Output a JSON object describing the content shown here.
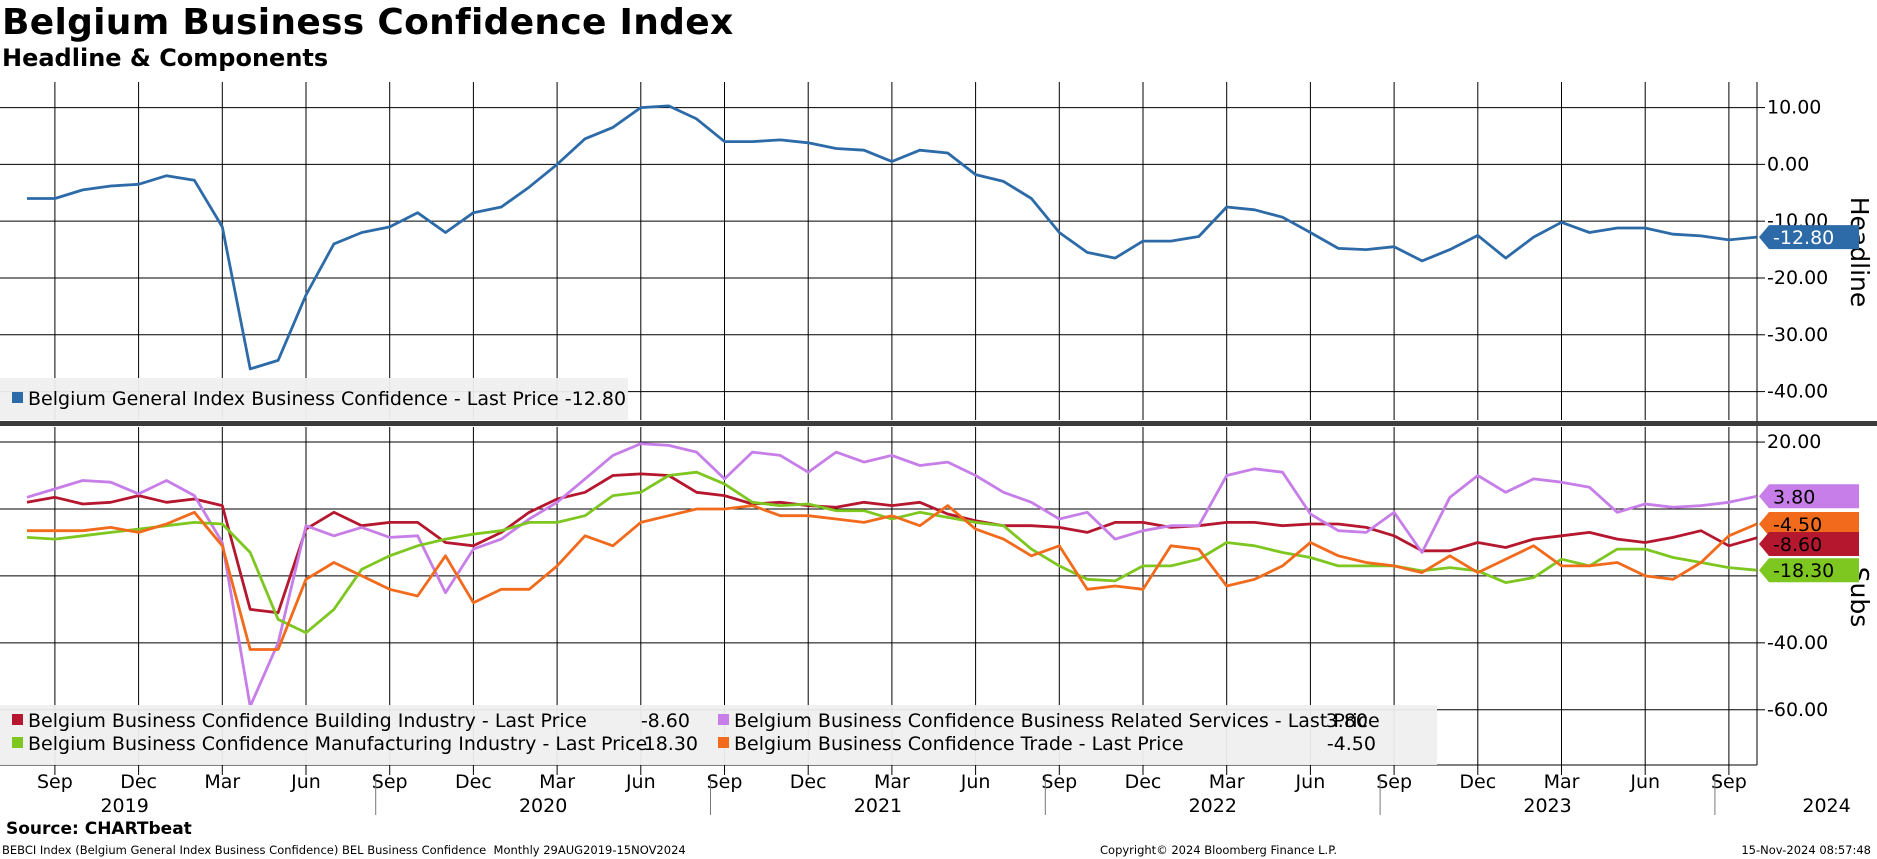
{
  "header": {
    "title": "Belgium Business Confidence Index",
    "subtitle": "Headline & Components"
  },
  "footer": {
    "source": "Source: CHARTbeat",
    "left": "BEBCI Index (Belgium General Index Business Confidence) BEL Business Confidence  Monthly 29AUG2019-15NOV2024",
    "middle": "Copyright© 2024 Bloomberg Finance L.P.",
    "right": "15-Nov-2024 08:57:48"
  },
  "chart_data": [
    {
      "type": "line",
      "panel": "top",
      "ylabel": "Headline",
      "ylim": [
        -45,
        14.5
      ],
      "yticks": [
        10,
        0,
        -10,
        -20,
        -30,
        -40
      ],
      "ytick_labels": [
        "10.00",
        "0.00",
        "-10.00",
        "-20.00",
        "-30.00",
        "-40.00"
      ],
      "grid": true,
      "legend_position": "bottom-left",
      "x_start": "2019-08",
      "series": [
        {
          "name": "Belgium General Index Business Confidence",
          "legend_text": "Belgium General Index Business Confidence - Last Price -12.80",
          "color": "#2c6aa8",
          "last_value_label": "-12.80",
          "values": [
            -6,
            -6,
            -4.5,
            -3.8,
            -3.5,
            -2,
            -2.8,
            -11,
            -36,
            -34.5,
            -23,
            -14,
            -12,
            -11,
            -8.5,
            -12,
            -8.5,
            -7.5,
            -4,
            0,
            4.5,
            6.5,
            10,
            10.3,
            8,
            4,
            4,
            4.3,
            3.8,
            2.8,
            2.5,
            0.5,
            2.5,
            2,
            -1.8,
            -3,
            -6,
            -12,
            -15.5,
            -16.5,
            -13.5,
            -13.5,
            -12.7,
            -7.5,
            -8,
            -9.3,
            -12,
            -14.8,
            -15,
            -14.5,
            -17,
            -15,
            -12.5,
            -16.5,
            -12.8,
            -10.2,
            -12,
            -11.2,
            -11.2,
            -12.3,
            -12.6,
            -13.3,
            -12.8
          ]
        }
      ]
    },
    {
      "type": "line",
      "panel": "bottom",
      "ylabel": "Subs",
      "ylim": [
        -76.5,
        24.5
      ],
      "yticks": [
        20,
        -40,
        -60
      ],
      "ytick_labels": [
        "20.00",
        "-40.00",
        "-60.00"
      ],
      "grid": true,
      "legend_position": "bottom-left",
      "x_start": "2019-08",
      "series": [
        {
          "name": "Belgium Business Confidence Building Industry",
          "legend_text": "Belgium Business Confidence Building Industry - Last Price",
          "legend_value": "-8.60",
          "color": "#b5172f",
          "last_value_label": "-8.60",
          "values": [
            2,
            3.5,
            1.5,
            2,
            4,
            2,
            3,
            1,
            -30,
            -31,
            -6,
            -1,
            -5,
            -4,
            -4,
            -10,
            -11,
            -7,
            -1,
            3,
            5,
            10,
            10.5,
            10,
            5,
            4,
            1.5,
            2,
            1,
            0.5,
            2,
            1,
            2,
            -1.5,
            -3.5,
            -5,
            -5,
            -5.5,
            -7,
            -4,
            -4,
            -5.5,
            -5,
            -4,
            -4,
            -5,
            -4.5,
            -4.5,
            -5.5,
            -8,
            -12.5,
            -12.5,
            -10,
            -11.5,
            -9,
            -8,
            -7,
            -9,
            -10,
            -8.5,
            -6.5,
            -11,
            -8.6
          ]
        },
        {
          "name": "Belgium Business Confidence Business Related Services",
          "legend_text": "Belgium Business Confidence Business Related Services - Last Price",
          "legend_value": "3.80",
          "color": "#c77ee8",
          "last_value_label": "3.80",
          "values": [
            3.5,
            6,
            8.5,
            8,
            4.5,
            8.5,
            4,
            -10,
            -59,
            -40,
            -5,
            -8,
            -5.5,
            -8.5,
            -8,
            -25,
            -12,
            -9,
            -3,
            2,
            9,
            16,
            19.5,
            19,
            17,
            9,
            17,
            16,
            11,
            17,
            14,
            16,
            13,
            14,
            10,
            5,
            2,
            -3,
            -1,
            -9,
            -6.5,
            -5,
            -5,
            10,
            12,
            11,
            -1.5,
            -6.5,
            -7,
            -1,
            -13,
            3.5,
            10,
            5,
            9,
            8,
            6.5,
            -1,
            1.5,
            0.5,
            1,
            2,
            3.8
          ]
        },
        {
          "name": "Belgium Business Confidence Manufacturing Industry",
          "legend_text": "Belgium Business Confidence Manufacturing Industry - Last Price",
          "legend_value": "-18.30",
          "color": "#7ec620",
          "last_value_label": "-18.30",
          "values": [
            -8.5,
            -9,
            -8,
            -7,
            -6,
            -5,
            -4,
            -4.5,
            -13,
            -33,
            -37,
            -30,
            -18,
            -14,
            -11,
            -9,
            -7.5,
            -6.5,
            -4,
            -4,
            -2,
            4,
            5,
            10,
            11,
            7.5,
            2,
            1,
            1.5,
            -0.5,
            -0.5,
            -3,
            -1,
            -2.5,
            -4,
            -5,
            -12,
            -17,
            -21,
            -21.5,
            -17,
            -17,
            -15,
            -10,
            -11,
            -13,
            -14.5,
            -17,
            -17,
            -17,
            -18.5,
            -17.5,
            -18.5,
            -22,
            -20.5,
            -15,
            -17,
            -12,
            -12,
            -14.5,
            -16,
            -17.5,
            -18.3
          ]
        },
        {
          "name": "Belgium Business Confidence Trade",
          "legend_text": "Belgium Business Confidence Trade - Last Price",
          "legend_value": "-4.50",
          "color": "#f26a1b",
          "last_value_label": "-4.50",
          "values": [
            -6.5,
            -6.5,
            -6.5,
            -5.5,
            -7,
            -4.5,
            -1,
            -11,
            -42,
            -42,
            -21,
            -16,
            -20,
            -24,
            -26,
            -14,
            -28,
            -24,
            -24,
            -17,
            -8,
            -11,
            -4,
            -2,
            0,
            0,
            1,
            -2,
            -2,
            -3,
            -4,
            -2,
            -5,
            1,
            -6,
            -9,
            -14,
            -11,
            -24,
            -23,
            -24,
            -11,
            -12,
            -23,
            -21,
            -17,
            -10,
            -14,
            -16,
            -17,
            -19,
            -14,
            -19,
            -15,
            -11,
            -17,
            -17,
            -16,
            -20,
            -21,
            -16,
            -8,
            -4.5
          ]
        }
      ]
    }
  ],
  "x_axis": {
    "month_labels": [
      "Sep",
      "Dec",
      "Mar",
      "Jun",
      "Sep",
      "Dec",
      "Mar",
      "Jun",
      "Sep",
      "Dec",
      "Mar",
      "Jun",
      "Sep",
      "Dec",
      "Mar",
      "Jun",
      "Sep",
      "Dec",
      "Mar",
      "Jun",
      "Sep"
    ],
    "year_labels": [
      "2019",
      "2020",
      "2021",
      "2022",
      "2023",
      "2024"
    ]
  }
}
